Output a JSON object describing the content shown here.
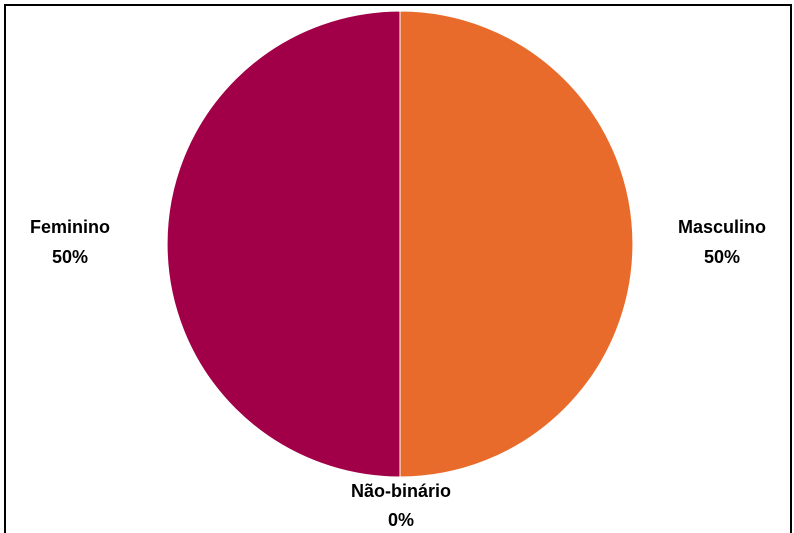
{
  "chart_data": {
    "type": "pie",
    "title": "",
    "slices": [
      {
        "label": "Masculino",
        "value": 50,
        "percent_label": "50%",
        "color": "#E96B2B"
      },
      {
        "label": "Não-binário",
        "value": 0,
        "percent_label": "0%",
        "color": "#7A7A7A"
      },
      {
        "label": "Feminino",
        "value": 50,
        "percent_label": "50%",
        "color": "#A10048"
      }
    ],
    "start_angle_deg": 0,
    "direction": "clockwise",
    "legend": "none",
    "slice_border_color": "#FFFFFF"
  }
}
